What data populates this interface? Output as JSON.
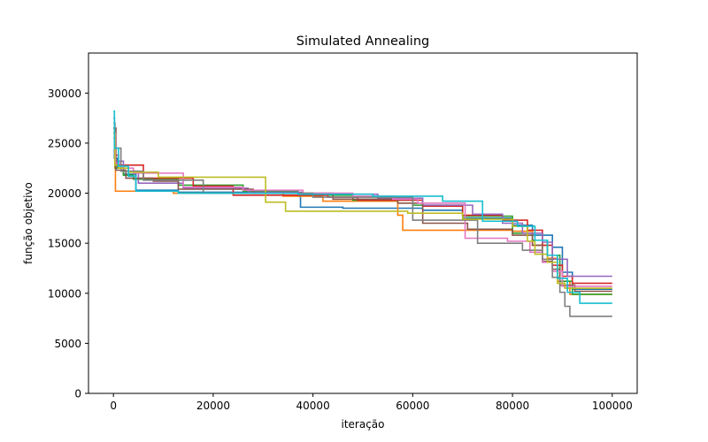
{
  "chart_data": {
    "type": "line",
    "title": "Simulated Annealing",
    "xlabel": "iteração",
    "ylabel": "função objetivo",
    "xlim": [
      -5000,
      105000
    ],
    "ylim": [
      0,
      34000
    ],
    "xticks": [
      0,
      20000,
      40000,
      60000,
      80000,
      100000
    ],
    "yticks": [
      0,
      5000,
      10000,
      15000,
      20000,
      25000,
      30000
    ],
    "grid": false,
    "legend": "none",
    "series": [
      {
        "color": "#1f77b4",
        "x": [
          0,
          200,
          800,
          2000,
          4500,
          13000,
          37000,
          37500,
          46000,
          62000,
          70000,
          80000,
          84000,
          88000,
          90000,
          92000,
          100000
        ],
        "y": [
          27500,
          23500,
          22500,
          21900,
          20300,
          20100,
          19700,
          18600,
          18500,
          18300,
          17500,
          16800,
          15800,
          14600,
          12100,
          10400,
          10400
        ]
      },
      {
        "color": "#ff7f0e",
        "x": [
          0,
          300,
          400,
          4000,
          12000,
          34000,
          42000,
          57000,
          58000,
          64000,
          75000,
          80000,
          84000,
          87000,
          89000,
          91500,
          100000
        ],
        "y": [
          26000,
          22500,
          20200,
          20200,
          20000,
          19700,
          19200,
          17800,
          16300,
          16300,
          16300,
          16200,
          14800,
          13500,
          11200,
          9900,
          9900
        ]
      },
      {
        "color": "#2ca02c",
        "x": [
          0,
          400,
          2000,
          4000,
          13000,
          26000,
          37000,
          48000,
          60000,
          70000,
          80000,
          84000,
          87000,
          89500,
          92000,
          100000
        ],
        "y": [
          25500,
          22500,
          21800,
          21400,
          20800,
          20200,
          19800,
          19300,
          18800,
          17700,
          16000,
          15300,
          13800,
          11200,
          9900,
          9900
        ]
      },
      {
        "color": "#d62728",
        "x": [
          0,
          300,
          1000,
          6000,
          16000,
          24000,
          43000,
          49000,
          62000,
          70000,
          78000,
          83000,
          86000,
          88000,
          90000,
          92000,
          100000
        ],
        "y": [
          26500,
          23800,
          22800,
          21500,
          20700,
          19800,
          19600,
          19300,
          18700,
          17800,
          17300,
          16300,
          14800,
          12800,
          11700,
          11000,
          11000
        ]
      },
      {
        "color": "#9467bd",
        "x": [
          0,
          300,
          2000,
          5000,
          14000,
          27000,
          38000,
          53000,
          62000,
          72000,
          78000,
          82000,
          86000,
          88000,
          91000,
          100000
        ],
        "y": [
          26000,
          23200,
          22200,
          21000,
          20500,
          20100,
          19900,
          19500,
          18800,
          17900,
          17000,
          16000,
          15100,
          13400,
          11700,
          11700
        ]
      },
      {
        "color": "#8c564b",
        "x": [
          0,
          500,
          2500,
          8000,
          13000,
          28000,
          44000,
          57000,
          62000,
          71000,
          80000,
          84000,
          86000,
          88000,
          89500,
          92500,
          100000
        ],
        "y": [
          26500,
          22300,
          21500,
          21200,
          20400,
          20000,
          19400,
          19000,
          17000,
          16400,
          15800,
          14800,
          13200,
          12400,
          10800,
          10200,
          10200
        ]
      },
      {
        "color": "#e377c2",
        "x": [
          0,
          400,
          1500,
          4000,
          14000,
          26000,
          38000,
          48000,
          56000,
          61000,
          70500,
          79000,
          83500,
          86000,
          88000,
          90000,
          100000
        ],
        "y": [
          26000,
          23000,
          22500,
          22000,
          20600,
          20300,
          20000,
          19700,
          19400,
          19000,
          15500,
          15200,
          14100,
          13100,
          12200,
          10700,
          10700
        ]
      },
      {
        "color": "#7f7f7f",
        "x": [
          0,
          300,
          1500,
          6000,
          18000,
          40000,
          60000,
          73000,
          82000,
          86000,
          88000,
          89500,
          90500,
          91500,
          100000
        ],
        "y": [
          27000,
          24500,
          22200,
          21300,
          20000,
          19600,
          17300,
          15000,
          14300,
          13400,
          11600,
          10100,
          8700,
          7700,
          7700
        ]
      },
      {
        "color": "#bcbd22",
        "x": [
          0,
          300,
          1000,
          3000,
          9000,
          30500,
          34500,
          45000,
          59000,
          70000,
          80000,
          83000,
          84500,
          87000,
          89000,
          90500,
          100000
        ],
        "y": [
          26000,
          22800,
          22500,
          22100,
          21600,
          19100,
          18200,
          18200,
          18000,
          17400,
          16700,
          15200,
          13900,
          13100,
          11000,
          10500,
          10500
        ]
      },
      {
        "color": "#17becf",
        "x": [
          0,
          200,
          1000,
          3000,
          4500,
          13000,
          37000,
          52000,
          66000,
          74000,
          81000,
          84500,
          87000,
          89000,
          91000,
          93500,
          100000
        ],
        "y": [
          28200,
          24500,
          22700,
          21700,
          20200,
          20000,
          19900,
          19700,
          19200,
          17200,
          16700,
          15300,
          13800,
          11500,
          10100,
          9000,
          9000
        ]
      }
    ]
  }
}
